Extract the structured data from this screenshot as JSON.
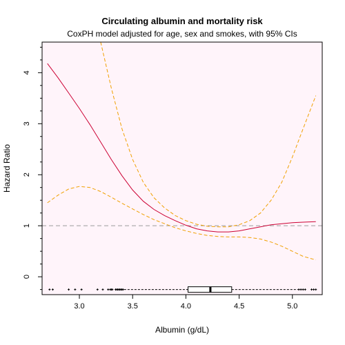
{
  "chart_data": {
    "type": "line",
    "title": "Circulating albumin and mortality risk",
    "subtitle": "CoxPH model adjusted for age, sex and smokes, with 95% CIs",
    "xlabel": "Albumin (g/dL)",
    "ylabel": "Hazard Ratio",
    "xlim": [
      2.65,
      5.28
    ],
    "ylim": [
      -0.35,
      4.6
    ],
    "x_ticks": [
      3.0,
      3.5,
      4.0,
      4.5,
      5.0
    ],
    "x_tick_labels": [
      "3.0",
      "3.5",
      "4.0",
      "4.5",
      "5.0"
    ],
    "y_ticks": [
      0,
      1,
      2,
      3,
      4
    ],
    "y_tick_labels": [
      "0",
      "1",
      "2",
      "3",
      "4"
    ],
    "y_minor_step": 0.25,
    "reference_line": {
      "y": 1,
      "color": "#9a9a9a",
      "style": "dashed"
    },
    "background_color": "#fff4fa",
    "grid": false,
    "series": [
      {
        "role": "estimate",
        "color": "#cc0033",
        "style": "solid",
        "x": [
          2.7,
          2.8,
          2.9,
          3.0,
          3.1,
          3.2,
          3.3,
          3.4,
          3.5,
          3.6,
          3.7,
          3.8,
          3.9,
          4.0,
          4.1,
          4.2,
          4.3,
          4.4,
          4.5,
          4.6,
          4.7,
          4.8,
          4.9,
          5.0,
          5.1,
          5.22
        ],
        "y": [
          4.18,
          3.9,
          3.6,
          3.3,
          2.98,
          2.64,
          2.3,
          1.98,
          1.7,
          1.48,
          1.32,
          1.2,
          1.1,
          1.01,
          0.94,
          0.9,
          0.88,
          0.88,
          0.9,
          0.94,
          0.98,
          1.02,
          1.04,
          1.06,
          1.07,
          1.08
        ]
      },
      {
        "role": "upper-ci",
        "color": "#f0a000",
        "style": "dashed",
        "x": [
          3.2,
          3.3,
          3.4,
          3.5,
          3.6,
          3.7,
          3.8,
          3.9,
          4.0,
          4.1,
          4.2,
          4.3,
          4.4,
          4.5,
          4.6,
          4.7,
          4.8,
          4.9,
          5.0,
          5.1,
          5.22
        ],
        "y": [
          4.6,
          3.7,
          2.9,
          2.3,
          1.85,
          1.55,
          1.35,
          1.2,
          1.1,
          1.03,
          0.99,
          0.98,
          0.98,
          1.02,
          1.1,
          1.25,
          1.5,
          1.85,
          2.35,
          2.9,
          3.55
        ]
      },
      {
        "role": "lower-ci",
        "color": "#f0a000",
        "style": "dashed",
        "x": [
          2.7,
          2.8,
          2.9,
          3.0,
          3.1,
          3.2,
          3.3,
          3.4,
          3.5,
          3.6,
          3.7,
          3.8,
          3.9,
          4.0,
          4.1,
          4.2,
          4.3,
          4.4,
          4.5,
          4.6,
          4.7,
          4.8,
          4.9,
          5.0,
          5.1,
          5.22
        ],
        "y": [
          1.45,
          1.6,
          1.72,
          1.77,
          1.75,
          1.67,
          1.56,
          1.44,
          1.33,
          1.22,
          1.12,
          1.04,
          0.96,
          0.9,
          0.85,
          0.81,
          0.79,
          0.78,
          0.78,
          0.77,
          0.74,
          0.68,
          0.6,
          0.5,
          0.4,
          0.33
        ]
      }
    ],
    "distribution": {
      "y": -0.25,
      "boxplot": {
        "q1": 4.02,
        "median": 4.23,
        "q3": 4.43,
        "whisker_low": 3.42,
        "whisker_high": 5.05
      },
      "outliers": [
        2.72,
        2.75,
        2.9,
        2.96,
        3.02,
        3.17,
        3.22,
        3.27,
        3.29,
        3.3,
        3.31,
        3.34,
        3.35,
        3.36,
        3.37,
        3.38,
        3.39,
        3.4,
        3.41,
        5.06,
        5.08,
        5.1,
        5.12,
        5.18,
        5.2,
        5.22
      ]
    }
  }
}
